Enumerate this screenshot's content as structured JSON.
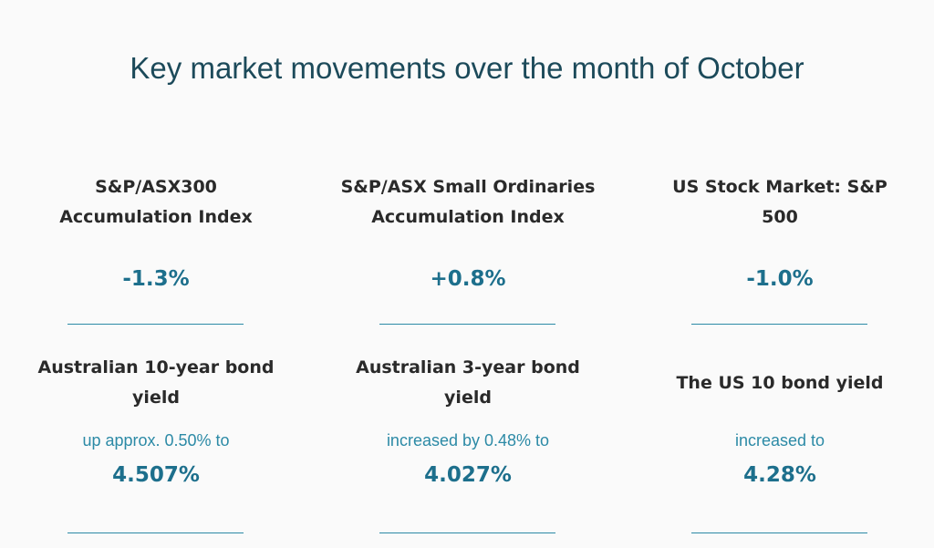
{
  "header": {
    "title": "Key market movements over the month of October"
  },
  "cards": [
    {
      "label": "S&P/ASX300 Accumulation Index",
      "value": "-1.3%"
    },
    {
      "label": "S&P/ASX Small Ordinaries Accumulation Index",
      "value": "+0.8%"
    },
    {
      "label": "US Stock Market: S&P 500",
      "value": "-1.0%"
    },
    {
      "label": "Australian 10-year bond yield",
      "note": "up approx. 0.50% to",
      "value": "4.507%"
    },
    {
      "label": "Australian 3-year bond yield",
      "note": "increased by 0.48% to",
      "value": "4.027%"
    },
    {
      "label": "The US 10 bond yield",
      "note": "increased to",
      "value": "4.28%"
    }
  ]
}
